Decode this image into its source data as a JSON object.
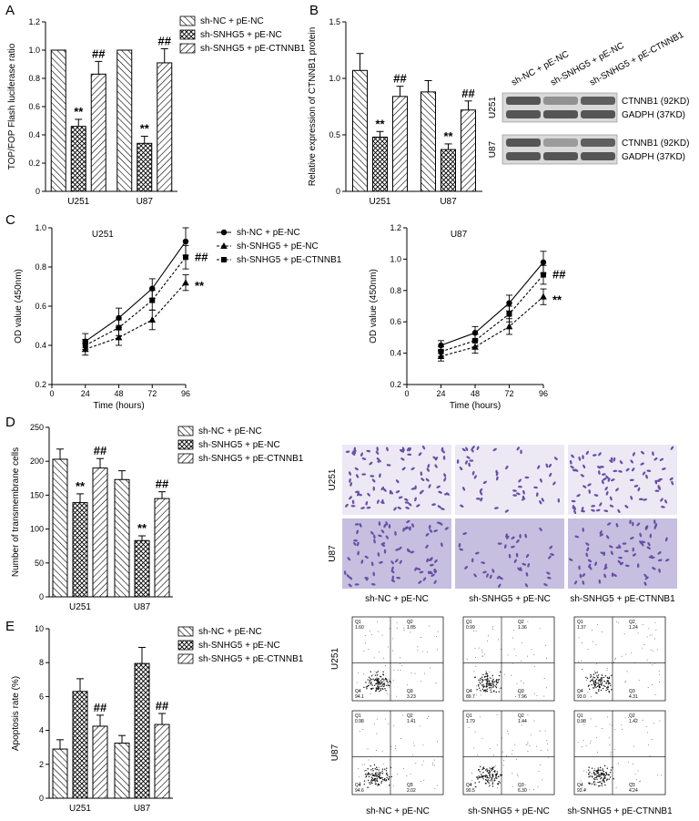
{
  "panel_letters": [
    "A",
    "B",
    "C",
    "D",
    "E"
  ],
  "colors": {
    "ink": "#000000",
    "background": "#ffffff",
    "stain": "#6a4fa6",
    "stain_bg": "#c6bfe0"
  },
  "groups": [
    "sh-NC + pE-NC",
    "sh-SNHG5 + pE-NC",
    "sh-SNHG5 + pE-CTNNB1"
  ],
  "chart_data": [
    {
      "id": "A",
      "type": "bar",
      "ylabel": "TOP/FOP Flash luciferase ratio",
      "ylim": [
        0,
        1.2
      ],
      "yticks": [
        0,
        0.2,
        0.4,
        0.6,
        0.8,
        1.0,
        1.2
      ],
      "ytick_labels": [
        "0",
        "0.2",
        "0.4",
        "0.6",
        "0.8",
        "1.0",
        "1.2"
      ],
      "categories": [
        "U251",
        "U87"
      ],
      "legend_position": "top-right",
      "series": [
        {
          "name": "sh-NC + pE-NC",
          "pattern": "hatch-back",
          "values": [
            1.0,
            1.0
          ],
          "errors": [
            0,
            0
          ],
          "sig": [
            "",
            ""
          ]
        },
        {
          "name": "sh-SNHG5 + pE-NC",
          "pattern": "cross",
          "values": [
            0.46,
            0.34
          ],
          "errors": [
            0.05,
            0.05
          ],
          "sig": [
            "**",
            "**"
          ]
        },
        {
          "name": "sh-SNHG5 + pE-CTNNB1",
          "pattern": "hatch-fwd",
          "values": [
            0.83,
            0.91
          ],
          "errors": [
            0.09,
            0.1
          ],
          "sig": [
            "##",
            "##"
          ]
        }
      ]
    },
    {
      "id": "B",
      "type": "bar",
      "ylabel": "Relative expression of CTNNB1 protein",
      "ylim": [
        0,
        1.5
      ],
      "yticks": [
        0,
        0.5,
        1.0,
        1.5
      ],
      "ytick_labels": [
        "0",
        "0.5",
        "1.0",
        "1.5"
      ],
      "categories": [
        "U251",
        "U87"
      ],
      "series": [
        {
          "name": "sh-NC + pE-NC",
          "pattern": "hatch-back",
          "values": [
            1.07,
            0.88
          ],
          "errors": [
            0.15,
            0.1
          ],
          "sig": [
            "",
            ""
          ]
        },
        {
          "name": "sh-SNHG5 + pE-NC",
          "pattern": "cross",
          "values": [
            0.48,
            0.37
          ],
          "errors": [
            0.05,
            0.05
          ],
          "sig": [
            "**",
            "**"
          ]
        },
        {
          "name": "sh-SNHG5 + pE-CTNNB1",
          "pattern": "hatch-fwd",
          "values": [
            0.84,
            0.72
          ],
          "errors": [
            0.09,
            0.08
          ],
          "sig": [
            "##",
            "##"
          ]
        }
      ]
    },
    {
      "id": "C1",
      "type": "line",
      "title": "U251",
      "xlabel": "Time (hours)",
      "ylabel": "OD value (450nm)",
      "x": [
        24,
        48,
        72,
        96
      ],
      "xlim": [
        0,
        96
      ],
      "xticks": [
        0,
        24,
        48,
        72,
        96
      ],
      "ylim": [
        0.2,
        1.0
      ],
      "yticks": [
        0.2,
        0.4,
        0.6,
        0.8,
        1.0
      ],
      "ytick_labels": [
        "0.2",
        "0.4",
        "0.6",
        "0.8",
        "1.0"
      ],
      "legend_position": "top-right",
      "series": [
        {
          "name": "sh-NC + pE-NC",
          "marker": "circle",
          "dash": "solid",
          "values": [
            0.42,
            0.54,
            0.69,
            0.93
          ],
          "errors": [
            0.04,
            0.05,
            0.05,
            0.07
          ],
          "sig": ""
        },
        {
          "name": "sh-SNHG5 + pE-NC",
          "marker": "triangle",
          "dash": "dashed",
          "values": [
            0.38,
            0.44,
            0.53,
            0.72
          ],
          "errors": [
            0.03,
            0.04,
            0.05,
            0.04
          ],
          "sig": "**"
        },
        {
          "name": "sh-SNHG5 + pE-CTNNB1",
          "marker": "square",
          "dash": "dashed",
          "values": [
            0.4,
            0.49,
            0.63,
            0.85
          ],
          "errors": [
            0.03,
            0.04,
            0.05,
            0.06
          ],
          "sig": "##"
        }
      ]
    },
    {
      "id": "C2",
      "type": "line",
      "title": "U87",
      "xlabel": "Time (hours)",
      "ylabel": "OD value (450nm)",
      "x": [
        24,
        48,
        72,
        96
      ],
      "xlim": [
        0,
        96
      ],
      "xticks": [
        0,
        24,
        48,
        72,
        96
      ],
      "ylim": [
        0.2,
        1.2
      ],
      "yticks": [
        0.2,
        0.4,
        0.6,
        0.8,
        1.0,
        1.2
      ],
      "ytick_labels": [
        "0.2",
        "0.4",
        "0.6",
        "0.8",
        "1.0",
        "1.2"
      ],
      "series": [
        {
          "name": "sh-NC + pE-NC",
          "marker": "circle",
          "dash": "solid",
          "values": [
            0.45,
            0.53,
            0.72,
            0.98
          ],
          "errors": [
            0.03,
            0.04,
            0.05,
            0.07
          ],
          "sig": ""
        },
        {
          "name": "sh-SNHG5 + pE-NC",
          "marker": "triangle",
          "dash": "dashed",
          "values": [
            0.38,
            0.44,
            0.57,
            0.76
          ],
          "errors": [
            0.03,
            0.04,
            0.05,
            0.05
          ],
          "sig": "**"
        },
        {
          "name": "sh-SNHG5 + pE-CTNNB1",
          "marker": "square",
          "dash": "dashed",
          "values": [
            0.41,
            0.48,
            0.65,
            0.9
          ],
          "errors": [
            0.03,
            0.04,
            0.05,
            0.06
          ],
          "sig": "##"
        }
      ]
    },
    {
      "id": "D",
      "type": "bar",
      "ylabel": "Number of transmembrane cells",
      "ylim": [
        0,
        250
      ],
      "yticks": [
        0,
        50,
        100,
        150,
        200,
        250
      ],
      "ytick_labels": [
        "0",
        "50",
        "100",
        "150",
        "200",
        "250"
      ],
      "categories": [
        "U251",
        "U87"
      ],
      "legend_position": "top-right",
      "series": [
        {
          "name": "sh-NC + pE-NC",
          "pattern": "hatch-back",
          "values": [
            203,
            173
          ],
          "errors": [
            15,
            13
          ],
          "sig": [
            "",
            ""
          ]
        },
        {
          "name": "sh-SNHG5 + pE-NC",
          "pattern": "cross",
          "values": [
            139,
            83
          ],
          "errors": [
            13,
            7
          ],
          "sig": [
            "**",
            "**"
          ]
        },
        {
          "name": "sh-SNHG5 + pE-CTNNB1",
          "pattern": "hatch-fwd",
          "values": [
            190,
            145
          ],
          "errors": [
            14,
            10
          ],
          "sig": [
            "##",
            "##"
          ]
        }
      ]
    },
    {
      "id": "E",
      "type": "bar",
      "ylabel": "Apoptosis rate (%)",
      "ylim": [
        0,
        10
      ],
      "yticks": [
        0,
        2,
        4,
        6,
        8,
        10
      ],
      "ytick_labels": [
        "0",
        "2",
        "4",
        "6",
        "8",
        "10"
      ],
      "categories": [
        "U251",
        "U87"
      ],
      "legend_position": "top-right",
      "series": [
        {
          "name": "sh-NC + pE-NC",
          "pattern": "hatch-back",
          "values": [
            2.9,
            3.25
          ],
          "errors": [
            0.55,
            0.45
          ],
          "sig": [
            "",
            ""
          ]
        },
        {
          "name": "sh-SNHG5 + pE-NC",
          "pattern": "cross",
          "values": [
            6.3,
            7.95
          ],
          "errors": [
            0.75,
            0.95
          ],
          "sig": [
            "",
            ""
          ]
        },
        {
          "name": "sh-SNHG5 + pE-CTNNB1",
          "pattern": "hatch-fwd",
          "values": [
            4.25,
            4.35
          ],
          "errors": [
            0.65,
            0.65
          ],
          "sig": [
            "##",
            "##"
          ]
        }
      ]
    }
  ],
  "western_blot": {
    "columns": [
      "sh-NC + pE-NC",
      "sh-SNHG5 + pE-NC",
      "sh-SNHG5 + pE-CTNNB1"
    ],
    "rows": [
      {
        "cell": "U251",
        "bands": [
          {
            "label": "CTNNB1 (92KD)",
            "intensity": [
              0.85,
              0.55,
              0.8
            ]
          },
          {
            "label": "GADPH (37KD)",
            "intensity": [
              0.85,
              0.85,
              0.85
            ]
          }
        ]
      },
      {
        "cell": "U87",
        "bands": [
          {
            "label": "CTNNB1 (92KD)",
            "intensity": [
              0.85,
              0.5,
              0.8
            ]
          },
          {
            "label": "GADPH (37KD)",
            "intensity": [
              0.85,
              0.85,
              0.85
            ]
          }
        ]
      }
    ]
  },
  "transwell_images": {
    "rows": [
      "U251",
      "U87"
    ],
    "captions": [
      "sh-NC + pE-NC",
      "sh-SNHG5 + pE-NC",
      "sh-SNHG5 + pE-CTNNB1"
    ],
    "relative_density": [
      [
        1.0,
        0.55,
        0.9
      ],
      [
        0.9,
        0.45,
        0.75
      ]
    ]
  },
  "flow_cytometry": {
    "rows": [
      "U251",
      "U87"
    ],
    "captions": [
      "sh-NC + pE-NC",
      "sh-SNHG5 + pE-NC",
      "sh-SNHG5 + pE-CTNNB1"
    ],
    "plots": [
      [
        {
          "Q1": "1.60",
          "Q2": "1.05",
          "Q3": "3.23",
          "Q4": "94.1"
        },
        {
          "Q1": "0.99",
          "Q2": "1.36",
          "Q3": "7.96",
          "Q4": "89.7"
        },
        {
          "Q1": "1.37",
          "Q2": "1.24",
          "Q3": "4.31",
          "Q4": "93.0"
        }
      ],
      [
        {
          "Q1": "0.98",
          "Q2": "1.41",
          "Q3": "2.02",
          "Q4": "94.6"
        },
        {
          "Q1": "1.79",
          "Q2": "1.44",
          "Q3": "6.30",
          "Q4": "90.5"
        },
        {
          "Q1": "0.98",
          "Q2": "1.42",
          "Q3": "4.24",
          "Q4": "93.4"
        }
      ]
    ]
  }
}
